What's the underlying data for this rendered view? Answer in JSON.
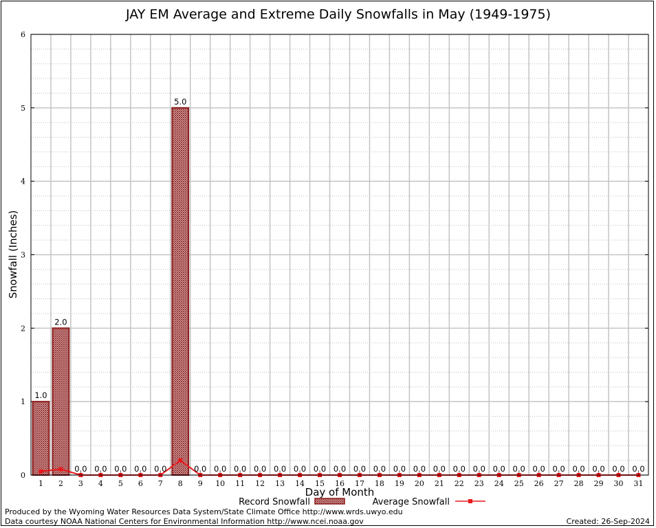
{
  "chart_data": {
    "type": "bar",
    "title": "JAY EM Average and Extreme Daily Snowfalls in May (1949-1975)",
    "xlabel": "Day of Month",
    "ylabel": "Snowfall (Inches)",
    "ylim": [
      0,
      6
    ],
    "yticks": [
      "0",
      "1",
      "2",
      "3",
      "4",
      "5",
      "6"
    ],
    "categories": [
      "1",
      "2",
      "3",
      "4",
      "5",
      "6",
      "7",
      "8",
      "9",
      "10",
      "11",
      "12",
      "13",
      "14",
      "15",
      "16",
      "17",
      "18",
      "19",
      "20",
      "21",
      "22",
      "23",
      "24",
      "25",
      "26",
      "27",
      "28",
      "29",
      "30",
      "31"
    ],
    "series": [
      {
        "name": "Record Snowfall",
        "type": "bar",
        "color": "#8b1a1a",
        "values": [
          1.0,
          2.0,
          0.0,
          0.0,
          0.0,
          0.0,
          0.0,
          5.0,
          0.0,
          0.0,
          0.0,
          0.0,
          0.0,
          0.0,
          0.0,
          0.0,
          0.0,
          0.0,
          0.0,
          0.0,
          0.0,
          0.0,
          0.0,
          0.0,
          0.0,
          0.0,
          0.0,
          0.0,
          0.0,
          0.0,
          0.0
        ],
        "labels": [
          "1.0",
          "2.0",
          "0.0",
          "0.0",
          "0.0",
          "0.0",
          "0.0",
          "5.0",
          "0.0",
          "0.0",
          "0.0",
          "0.0",
          "0.0",
          "0.0",
          "0.0",
          "0.0",
          "0.0",
          "0.0",
          "0.0",
          "0.0",
          "0.0",
          "0.0",
          "0.0",
          "0.0",
          "0.0",
          "0.0",
          "0.0",
          "0.0",
          "0.0",
          "0.0",
          "0.0"
        ]
      },
      {
        "name": "Average Snowfall",
        "type": "line",
        "color": "#e8191c",
        "values": [
          0.05,
          0.08,
          0.0,
          0.0,
          0.0,
          0.0,
          0.0,
          0.2,
          0.0,
          0.0,
          0.0,
          0.0,
          0.0,
          0.0,
          0.0,
          0.0,
          0.0,
          0.0,
          0.0,
          0.0,
          0.0,
          0.0,
          0.0,
          0.0,
          0.0,
          0.0,
          0.0,
          0.0,
          0.0,
          0.0,
          0.0
        ]
      }
    ],
    "grid": true,
    "legend_position": "bottom"
  },
  "footer": {
    "line1": "Produced by the Wyoming Water Resources Data System/State Climate Office http://www.wrds.uwyo.edu",
    "line2": "Data courtesy NOAA National Centers for Environmental Information http://www.ncei.noaa.gov",
    "created": "Created:  26-Sep-2024"
  }
}
